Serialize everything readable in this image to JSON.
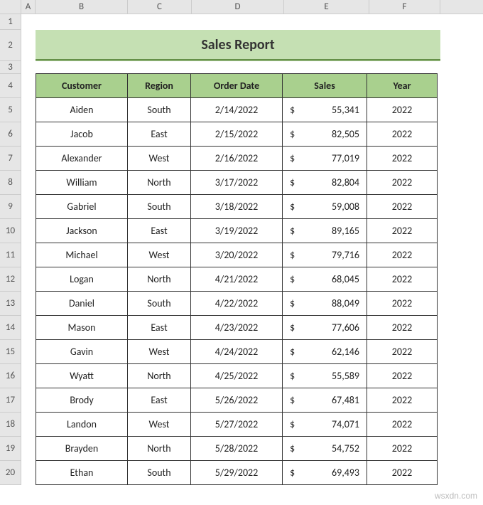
{
  "colHeaders": [
    "A",
    "B",
    "C",
    "D",
    "E",
    "F"
  ],
  "rowHeaders": [
    "1",
    "2",
    "3",
    "4",
    "5",
    "6",
    "7",
    "8",
    "9",
    "10",
    "11",
    "12",
    "13",
    "14",
    "15",
    "16",
    "17",
    "18",
    "19",
    "20"
  ],
  "title": "Sales Report",
  "tableHeaders": {
    "customer": "Customer",
    "region": "Region",
    "orderDate": "Order Date",
    "sales": "Sales",
    "year": "Year"
  },
  "rows": [
    {
      "customer": "Aiden",
      "region": "South",
      "orderDate": "2/14/2022",
      "sales": "55,341",
      "year": "2022"
    },
    {
      "customer": "Jacob",
      "region": "East",
      "orderDate": "2/15/2022",
      "sales": "82,505",
      "year": "2022"
    },
    {
      "customer": "Alexander",
      "region": "West",
      "orderDate": "2/16/2022",
      "sales": "77,019",
      "year": "2022"
    },
    {
      "customer": "William",
      "region": "North",
      "orderDate": "3/17/2022",
      "sales": "82,804",
      "year": "2022"
    },
    {
      "customer": "Gabriel",
      "region": "South",
      "orderDate": "3/18/2022",
      "sales": "59,008",
      "year": "2022"
    },
    {
      "customer": "Jackson",
      "region": "East",
      "orderDate": "3/19/2022",
      "sales": "89,165",
      "year": "2022"
    },
    {
      "customer": "Michael",
      "region": "West",
      "orderDate": "3/20/2022",
      "sales": "79,716",
      "year": "2022"
    },
    {
      "customer": "Logan",
      "region": "North",
      "orderDate": "4/21/2022",
      "sales": "68,045",
      "year": "2022"
    },
    {
      "customer": "Daniel",
      "region": "South",
      "orderDate": "4/22/2022",
      "sales": "88,049",
      "year": "2022"
    },
    {
      "customer": "Mason",
      "region": "East",
      "orderDate": "4/23/2022",
      "sales": "77,606",
      "year": "2022"
    },
    {
      "customer": "Gavin",
      "region": "West",
      "orderDate": "4/24/2022",
      "sales": "62,146",
      "year": "2022"
    },
    {
      "customer": "Wyatt",
      "region": "North",
      "orderDate": "4/25/2022",
      "sales": "55,589",
      "year": "2022"
    },
    {
      "customer": "Brody",
      "region": "East",
      "orderDate": "5/26/2022",
      "sales": "67,481",
      "year": "2022"
    },
    {
      "customer": "Landon",
      "region": "West",
      "orderDate": "5/27/2022",
      "sales": "74,071",
      "year": "2022"
    },
    {
      "customer": "Brayden",
      "region": "North",
      "orderDate": "5/28/2022",
      "sales": "54,752",
      "year": "2022"
    },
    {
      "customer": "Ethan",
      "region": "South",
      "orderDate": "5/29/2022",
      "sales": "69,493",
      "year": "2022"
    }
  ],
  "dollarSign": "$",
  "watermark": "wsxdn.com",
  "colors": {
    "titleBg": "#c5e0b3",
    "titleBorder": "#548235",
    "headerBg": "#a9d08e",
    "cellBorder": "#333333",
    "gridBorder": "#cccccc",
    "rowColHeaderBg": "#e6e6e6"
  }
}
